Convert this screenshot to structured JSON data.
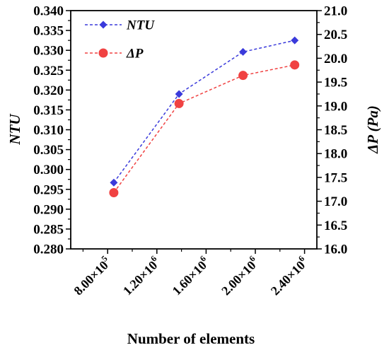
{
  "chart_data": {
    "type": "line",
    "xlabel": "Number of elements",
    "x_ticks": [
      {
        "value": 800000,
        "mantissa": "8.00",
        "exp": "5"
      },
      {
        "value": 1200000,
        "mantissa": "1.20",
        "exp": "6"
      },
      {
        "value": 1600000,
        "mantissa": "1.60",
        "exp": "6"
      },
      {
        "value": 2000000,
        "mantissa": "2.00",
        "exp": "6"
      },
      {
        "value": 2400000,
        "mantissa": "2.40",
        "exp": "6"
      }
    ],
    "xlim": [
      500000,
      2500000
    ],
    "y_left": {
      "label": "NTU",
      "lim": [
        0.28,
        0.34
      ],
      "ticks": [
        "0.280",
        "0.285",
        "0.290",
        "0.295",
        "0.300",
        "0.305",
        "0.310",
        "0.315",
        "0.320",
        "0.325",
        "0.330",
        "0.335",
        "0.340"
      ]
    },
    "y_right": {
      "label": "ΔP (Pa)",
      "lim": [
        16.0,
        21.0
      ],
      "ticks": [
        "16.0",
        "16.5",
        "17.0",
        "17.5",
        "18.0",
        "18.5",
        "19.0",
        "19.5",
        "20.0",
        "20.5",
        "21.0"
      ]
    },
    "series": [
      {
        "name": "NTU",
        "axis": "left",
        "color": "#3a3adb",
        "marker": "diamond",
        "line": "dashed",
        "x": [
          850000,
          1380000,
          1900000,
          2320000
        ],
        "y": [
          0.2967,
          0.319,
          0.3296,
          0.3325
        ]
      },
      {
        "name": "ΔP",
        "axis": "right",
        "color": "#f04242",
        "marker": "circle",
        "line": "dashed",
        "x": [
          850000,
          1380000,
          1900000,
          2320000
        ],
        "y": [
          17.18,
          19.05,
          19.64,
          19.86
        ]
      }
    ],
    "legend": "top-left",
    "grid": false
  }
}
